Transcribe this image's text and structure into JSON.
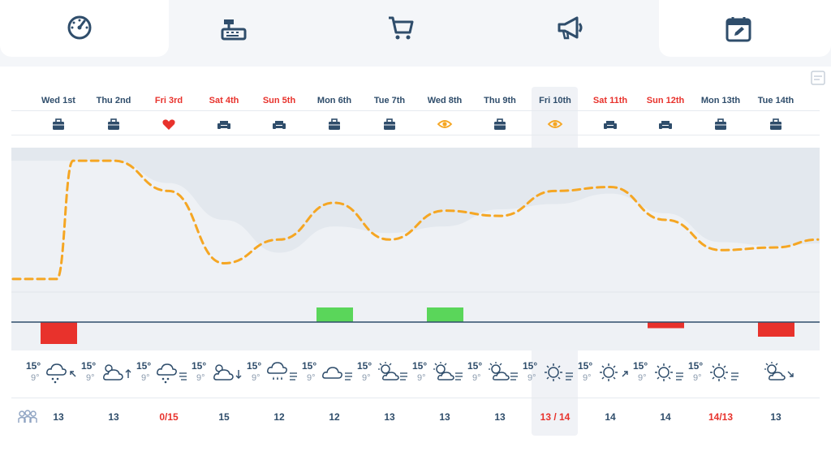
{
  "nav": {
    "items": [
      {
        "id": "dashboard",
        "icon": "speedometer-icon"
      },
      {
        "id": "pos",
        "icon": "cash-register-icon"
      },
      {
        "id": "cart",
        "icon": "shopping-cart-icon"
      },
      {
        "id": "marketing",
        "icon": "megaphone-icon"
      },
      {
        "id": "calendar",
        "icon": "calendar-edit-icon"
      }
    ]
  },
  "days": [
    {
      "label": "Wed 1st",
      "red": false,
      "icon": "briefcase-icon"
    },
    {
      "label": "Thu 2nd",
      "red": false,
      "icon": "briefcase-icon"
    },
    {
      "label": "Fri 3rd",
      "red": true,
      "icon": "heart-icon"
    },
    {
      "label": "Sat 4th",
      "red": true,
      "icon": "armchair-icon"
    },
    {
      "label": "Sun 5th",
      "red": true,
      "icon": "armchair-icon"
    },
    {
      "label": "Mon 6th",
      "red": false,
      "icon": "briefcase-icon"
    },
    {
      "label": "Tue 7th",
      "red": false,
      "icon": "briefcase-icon"
    },
    {
      "label": "Wed 8th",
      "red": false,
      "icon": "eye-icon"
    },
    {
      "label": "Thu 9th",
      "red": false,
      "icon": "briefcase-icon"
    },
    {
      "label": "Fri 10th",
      "red": false,
      "icon": "eye-icon"
    },
    {
      "label": "Sat 11th",
      "red": true,
      "icon": "armchair-icon"
    },
    {
      "label": "Sun 12th",
      "red": true,
      "icon": "armchair-icon"
    },
    {
      "label": "Mon 13th",
      "red": false,
      "icon": "briefcase-icon"
    },
    {
      "label": "Tue 14th",
      "red": false,
      "icon": "briefcase-icon"
    }
  ],
  "weather": [
    {
      "hi": "15°",
      "lo": "9°",
      "icon": "cloud-snow-icon",
      "wind": "arrow-up-left-icon"
    },
    {
      "hi": "15°",
      "lo": "9°",
      "icon": "partly-cloudy-icon",
      "wind": "arrow-up-icon"
    },
    {
      "hi": "15°",
      "lo": "9°",
      "icon": "cloud-snow-icon",
      "wind": "wind-left-icon"
    },
    {
      "hi": "15°",
      "lo": "9°",
      "icon": "partly-cloudy-icon",
      "wind": "arrow-down-icon"
    },
    {
      "hi": "15°",
      "lo": "9°",
      "icon": "cloud-rain-icon",
      "wind": "wind-right-icon"
    },
    {
      "hi": "15°",
      "lo": "9°",
      "icon": "cloud-icon",
      "wind": "wind-right-icon"
    },
    {
      "hi": "15°",
      "lo": "9°",
      "icon": "partly-sunny-icon",
      "wind": "wind-right-icon"
    },
    {
      "hi": "15°",
      "lo": "9°",
      "icon": "partly-sunny-icon",
      "wind": "wind-right-icon"
    },
    {
      "hi": "15°",
      "lo": "9°",
      "icon": "partly-sunny-icon",
      "wind": "wind-right-icon"
    },
    {
      "hi": "15°",
      "lo": "9°",
      "icon": "sun-icon",
      "wind": "wind-right-icon"
    },
    {
      "hi": "15°",
      "lo": "9°",
      "icon": "sun-icon",
      "wind": "arrow-up-right-icon"
    },
    {
      "hi": "15°",
      "lo": "9°",
      "icon": "sun-icon",
      "wind": "wind-right-icon"
    },
    {
      "hi": "15°",
      "lo": "9°",
      "icon": "sun-icon",
      "wind": "wind-right-icon"
    },
    {
      "hi": "",
      "lo": "",
      "icon": "partly-sunny-icon",
      "wind": "arrow-down-right-icon"
    }
  ],
  "counts": [
    {
      "value": "13",
      "red": false
    },
    {
      "value": "13",
      "red": false
    },
    {
      "value": "0/15",
      "red": true
    },
    {
      "value": "15",
      "red": false
    },
    {
      "value": "12",
      "red": false
    },
    {
      "value": "12",
      "red": false
    },
    {
      "value": "13",
      "red": false
    },
    {
      "value": "13",
      "red": false
    },
    {
      "value": "13",
      "red": false
    },
    {
      "value": "13 / 14",
      "red": true
    },
    {
      "value": "14",
      "red": false
    },
    {
      "value": "14",
      "red": false
    },
    {
      "value": "14/13",
      "red": true
    },
    {
      "value": "13",
      "red": false
    }
  ],
  "colors": {
    "text": "#2f4d6b",
    "red": "#e8322c",
    "orange": "#f5a623",
    "green": "#5ad65a",
    "band": "#e8ecf1"
  },
  "chart_data": {
    "type": "line",
    "categories": [
      "Wed 1st",
      "Thu 2nd",
      "Fri 3rd",
      "Sat 4th",
      "Sun 5th",
      "Mon 6th",
      "Tue 7th",
      "Wed 8th",
      "Thu 9th",
      "Fri 10th",
      "Sat 11th",
      "Sun 12th",
      "Mon 13th",
      "Tue 14th"
    ],
    "series": [
      {
        "values": [
          0.05,
          0.95,
          0.72,
          0.17,
          0.35,
          0.63,
          0.35,
          0.57,
          0.53,
          0.72,
          0.75,
          0.5,
          0.27,
          0.29
        ]
      }
    ],
    "bars": [
      -0.9,
      0,
      0,
      0,
      0,
      0.6,
      0,
      0.6,
      0,
      0,
      0,
      -0.25,
      0,
      -0.6
    ],
    "band_top": [
      0.95,
      0.95,
      0.78,
      0.5,
      0.25,
      0.45,
      0.4,
      0.45,
      0.58,
      0.62,
      0.7,
      0.55,
      0.33,
      0.3
    ],
    "ylim": [
      0,
      1
    ]
  }
}
